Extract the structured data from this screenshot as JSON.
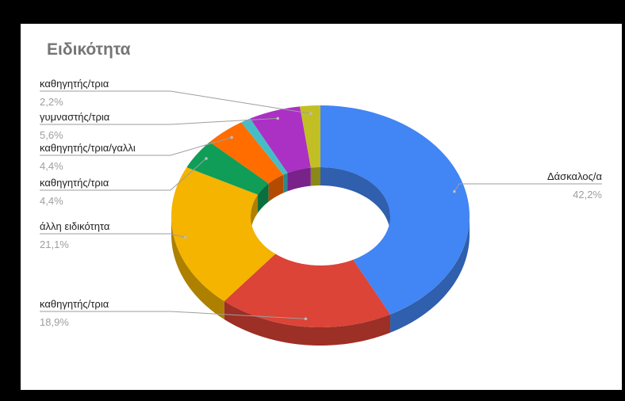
{
  "chart_data": {
    "type": "pie",
    "style": "3d-donut",
    "title": "Ειδικότητα",
    "slices": [
      {
        "label": "Δάσκαλος/α",
        "value": 42.2,
        "value_label": "42,2%",
        "color": "#4285F4",
        "side_color": "#2F5FAD"
      },
      {
        "label": "καθηγητής/τρια",
        "value": 18.9,
        "value_label": "18,9%",
        "color": "#DB4437",
        "side_color": "#9C2F26"
      },
      {
        "label": "άλλη ειδικότητα",
        "value": 21.1,
        "value_label": "21,1%",
        "color": "#F4B400",
        "side_color": "#AD8000"
      },
      {
        "label": "καθηγητής/τρια",
        "value": 4.4,
        "value_label": "4,4%",
        "color": "#0F9D58",
        "side_color": "#0A6E3E"
      },
      {
        "label": "καθηγητής/τρια/γαλλι",
        "value": 4.4,
        "value_label": "4,4%",
        "color": "#FF6D00",
        "side_color": "#B34C00"
      },
      {
        "label": "",
        "value": 1.1,
        "value_label": "",
        "color": "#46BDC6",
        "side_color": "#31868C"
      },
      {
        "label": "γυμναστής/τρια",
        "value": 5.6,
        "value_label": "5,6%",
        "color": "#AB30C4",
        "side_color": "#78228A"
      },
      {
        "label": "καθηγητής/τρια",
        "value": 2.2,
        "value_label": "2,2%",
        "color": "#C2BF24",
        "side_color": "#8A8819"
      }
    ]
  }
}
